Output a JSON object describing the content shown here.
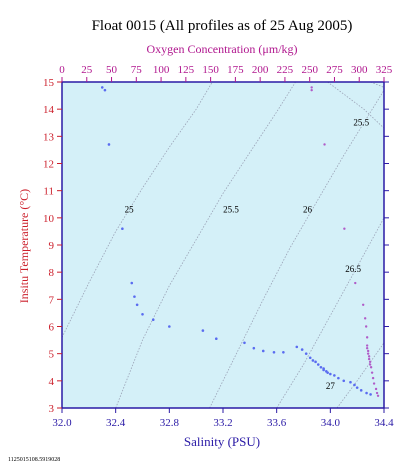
{
  "chart_data": {
    "type": "scatter",
    "title": "Float 0015  (All profiles as of 25 Aug 2005)",
    "xlabel": "Salinity (PSU)",
    "ylabel": "Insitu Temperature (°C)",
    "x2label": "Oxygen Concentration (μm/kg)",
    "xlim": [
      32.0,
      34.4
    ],
    "ylim": [
      3,
      15
    ],
    "x2lim": [
      0,
      325
    ],
    "xticks": [
      "32.0",
      "32.4",
      "32.8",
      "33.2",
      "33.6",
      "34.0",
      "34.4"
    ],
    "xtick_values": [
      32.0,
      32.4,
      32.8,
      33.2,
      33.6,
      34.0,
      34.4
    ],
    "yticks": [
      "3",
      "4",
      "5",
      "6",
      "7",
      "8",
      "9",
      "10",
      "11",
      "12",
      "13",
      "14",
      "15"
    ],
    "ytick_values": [
      3,
      4,
      5,
      6,
      7,
      8,
      9,
      10,
      11,
      12,
      13,
      14,
      15
    ],
    "x2ticks": [
      "0",
      "25",
      "50",
      "75",
      "100",
      "125",
      "150",
      "175",
      "200",
      "225",
      "250",
      "275",
      "300",
      "325"
    ],
    "x2tick_values": [
      0,
      25,
      50,
      75,
      100,
      125,
      150,
      175,
      200,
      225,
      250,
      275,
      300,
      325
    ],
    "grid": false,
    "footer": "1125015108.5919028",
    "colors": {
      "background": "#d4f0f8",
      "axis": "#2a1aa6",
      "oxygen_axis": "#b0168e",
      "temp_axis": "#cc1f2b",
      "salinity_points": "#5a6cf0",
      "oxygen_points": "#b05cc8",
      "isopycnal": "#9aa2b6"
    },
    "isopycnals": [
      {
        "label": "25",
        "points": [
          [
            32.0,
            5.6
          ],
          [
            32.2,
            7.6
          ],
          [
            32.4,
            9.5
          ],
          [
            32.6,
            11.1
          ],
          [
            32.8,
            12.6
          ],
          [
            33.0,
            14.0
          ],
          [
            33.12,
            15.0
          ]
        ],
        "label_at": [
          32.5,
          10.2
        ]
      },
      {
        "label": "25.5",
        "points": [
          [
            32.4,
            3.0
          ],
          [
            32.6,
            5.5
          ],
          [
            32.8,
            7.5
          ],
          [
            33.0,
            9.2
          ],
          [
            33.2,
            10.9
          ],
          [
            33.4,
            12.4
          ],
          [
            33.6,
            13.9
          ],
          [
            33.74,
            15.0
          ]
        ],
        "label_at": [
          33.26,
          10.2
        ]
      },
      {
        "label": "26",
        "points": [
          [
            33.1,
            3.0
          ],
          [
            33.3,
            5.0
          ],
          [
            33.5,
            7.0
          ],
          [
            33.7,
            8.9
          ],
          [
            33.9,
            10.6
          ],
          [
            34.1,
            12.3
          ],
          [
            34.3,
            13.9
          ],
          [
            34.4,
            14.7
          ]
        ],
        "label_at": [
          33.83,
          10.2
        ]
      },
      {
        "label": "26.5",
        "points": [
          [
            33.6,
            3.0
          ],
          [
            33.8,
            4.6
          ],
          [
            34.0,
            6.4
          ],
          [
            34.2,
            8.2
          ],
          [
            34.4,
            10.0
          ]
        ],
        "label_at": [
          34.17,
          8.0
        ]
      },
      {
        "label": "27",
        "points": [
          [
            34.05,
            3.0
          ],
          [
            34.2,
            4.0
          ],
          [
            34.4,
            5.4
          ]
        ],
        "label_at": [
          34.0,
          3.7
        ]
      },
      {
        "label": "25.5",
        "points": [
          [
            33.98,
            15.0
          ],
          [
            34.25,
            14.0
          ],
          [
            34.4,
            13.3
          ]
        ],
        "label_at": [
          34.23,
          13.4
        ]
      },
      {
        "label": "",
        "points": [
          [
            34.3,
            15.0
          ],
          [
            34.4,
            14.8
          ]
        ],
        "label_at": null
      }
    ],
    "series": [
      {
        "name": "Salinity",
        "color": "#5a6cf0",
        "points": [
          [
            32.3,
            14.8
          ],
          [
            32.32,
            14.7
          ],
          [
            32.35,
            12.7
          ],
          [
            32.45,
            9.6
          ],
          [
            32.52,
            7.6
          ],
          [
            32.54,
            7.1
          ],
          [
            32.56,
            6.8
          ],
          [
            32.6,
            6.45
          ],
          [
            32.68,
            6.25
          ],
          [
            32.8,
            6.0
          ],
          [
            33.05,
            5.85
          ],
          [
            33.15,
            5.55
          ],
          [
            33.36,
            5.4
          ],
          [
            33.43,
            5.2
          ],
          [
            33.5,
            5.1
          ],
          [
            33.58,
            5.05
          ],
          [
            33.65,
            5.05
          ],
          [
            33.75,
            5.25
          ],
          [
            33.79,
            5.15
          ],
          [
            33.82,
            5.0
          ],
          [
            33.85,
            4.85
          ],
          [
            33.87,
            4.75
          ],
          [
            33.89,
            4.7
          ],
          [
            33.91,
            4.6
          ],
          [
            33.93,
            4.5
          ],
          [
            33.95,
            4.45
          ],
          [
            33.97,
            4.35
          ],
          [
            34.0,
            4.25
          ],
          [
            34.03,
            4.2
          ],
          [
            34.06,
            4.1
          ],
          [
            34.1,
            4.0
          ],
          [
            34.15,
            3.95
          ],
          [
            34.18,
            3.85
          ],
          [
            34.2,
            3.75
          ],
          [
            34.23,
            3.65
          ],
          [
            34.27,
            3.55
          ],
          [
            34.3,
            3.5
          ],
          [
            33.95,
            4.4
          ],
          [
            33.98,
            4.3
          ]
        ]
      },
      {
        "name": "Oxygen",
        "color": "#b05cc8",
        "points": [
          [
            252,
            14.8
          ],
          [
            252,
            14.7
          ],
          [
            265,
            12.7
          ],
          [
            285,
            9.6
          ],
          [
            296,
            7.6
          ],
          [
            304,
            6.8
          ],
          [
            306,
            6.3
          ],
          [
            307,
            6.0
          ],
          [
            308,
            5.6
          ],
          [
            308,
            5.3
          ],
          [
            309,
            5.1
          ],
          [
            310,
            4.9
          ],
          [
            311,
            4.7
          ],
          [
            312,
            4.5
          ],
          [
            313,
            4.3
          ],
          [
            314,
            4.1
          ],
          [
            315,
            3.9
          ],
          [
            317,
            3.7
          ],
          [
            318,
            3.55
          ],
          [
            319,
            3.45
          ],
          [
            308,
            5.2
          ],
          [
            309,
            5.0
          ],
          [
            310,
            4.8
          ],
          [
            311,
            4.6
          ]
        ]
      }
    ]
  }
}
